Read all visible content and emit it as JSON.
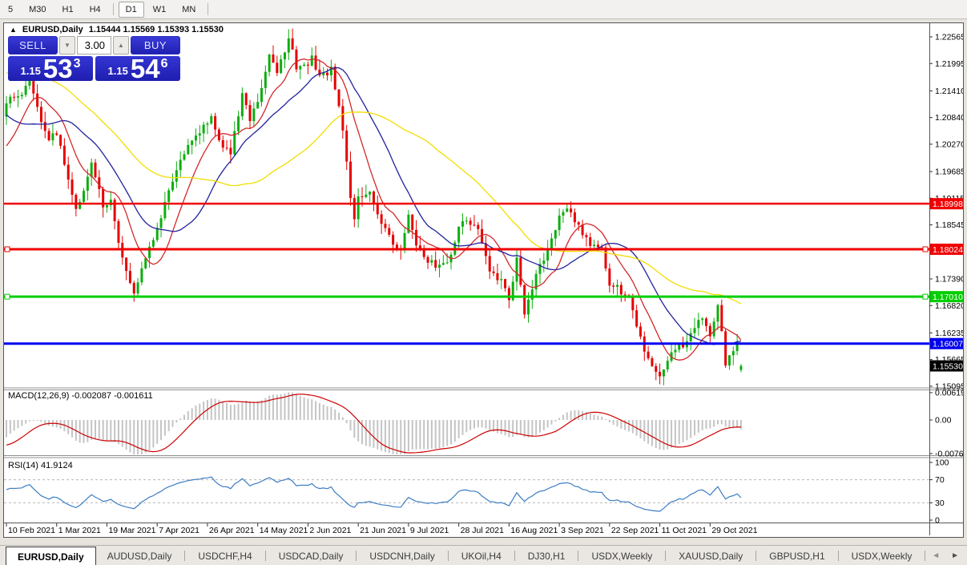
{
  "toolbar": {
    "timeframes": [
      "5",
      "M30",
      "H1",
      "H4",
      "D1",
      "W1",
      "MN"
    ],
    "selected": "D1"
  },
  "chart_header": {
    "collapse_arrow": "▲",
    "symbol": "EURUSD,Daily",
    "ohlc_text": "1.15444 1.15569 1.15393 1.15530"
  },
  "trade_panel": {
    "sell_label": "SELL",
    "buy_label": "BUY",
    "volume": "3.00",
    "spin_down": "▼",
    "spin_up": "▲",
    "sell_price_prefix": "1.15",
    "sell_price_big": "53",
    "sell_price_sup": "3",
    "buy_price_prefix": "1.15",
    "buy_price_big": "54",
    "buy_price_sup": "6"
  },
  "subwindows": {
    "macd_label": "MACD(12,26,9) -0.002087 -0.001611",
    "rsi_label": "RSI(14) 41.9124"
  },
  "tabs": {
    "items": [
      "EURUSD,Daily",
      "AUDUSD,Daily",
      "USDCHF,H4",
      "USDCAD,Daily",
      "USDCNH,Daily",
      "UKOil,H4",
      "DJ30,H1",
      "USDX,Weekly",
      "XAUUSD,Daily",
      "GBPUSD,H1",
      "USDX,Weekly"
    ],
    "active_index": 0,
    "scroll_left": "◄",
    "scroll_right": "►"
  },
  "chart_data": {
    "type": "candlestick",
    "symbol": "EURUSD",
    "timeframe": "Daily",
    "last_ohlc": {
      "open": 1.15444,
      "high": 1.15569,
      "low": 1.15393,
      "close": 1.1553
    },
    "bars_total": 191,
    "up_color": "#0EAE10",
    "down_color": "#E60000",
    "price_axis_labels": [
      [
        "1.22565",
        1.22565
      ],
      [
        "1.21995",
        1.21995
      ],
      [
        "1.21410",
        1.2141
      ],
      [
        "1.20840",
        1.2084
      ],
      [
        "1.20270",
        1.2027
      ],
      [
        "1.19685",
        1.19685
      ],
      [
        "1.19115",
        1.19115
      ],
      [
        "1.18545",
        1.18545
      ],
      [
        "1.17390",
        1.1739
      ],
      [
        "1.16820",
        1.1682
      ],
      [
        "1.16235",
        1.16235
      ],
      [
        "1.15665",
        1.15665
      ],
      [
        "1.15095",
        1.15095
      ]
    ],
    "x_axis_dates": [
      [
        "10 Feb 2021",
        0
      ],
      [
        "1 Mar 2021",
        13
      ],
      [
        "19 Mar 2021",
        26
      ],
      [
        "7 Apr 2021",
        39
      ],
      [
        "26 Apr 2021",
        52
      ],
      [
        "14 May 2021",
        65
      ],
      [
        "2 Jun 2021",
        78
      ],
      [
        "21 Jun 2021",
        91
      ],
      [
        "9 Jul 2021",
        104
      ],
      [
        "28 Jul 2021",
        117
      ],
      [
        "16 Aug 2021",
        130
      ],
      [
        "3 Sep 2021",
        143
      ],
      [
        "22 Sep 2021",
        156
      ],
      [
        "11 Oct 2021",
        169
      ],
      [
        "29 Oct 2021",
        182
      ]
    ],
    "hlines": [
      {
        "price": 1.18998,
        "label": "1.18998",
        "color": "#F00000",
        "width": 2.5,
        "selected": false
      },
      {
        "price": 1.18024,
        "label": "1.18024",
        "color": "#F00000",
        "width": 3,
        "selected": true
      },
      {
        "price": 1.1701,
        "label": "1.17010",
        "color": "#00CE00",
        "width": 3,
        "selected": true
      },
      {
        "price": 1.16007,
        "label": "1.16007",
        "color": "#0000F0",
        "width": 3,
        "selected": false
      }
    ],
    "current_price": {
      "label": "1.15530",
      "price": 1.1553,
      "bg": "#000000"
    },
    "moving_averages": [
      {
        "period": 10,
        "color": "#D22828"
      },
      {
        "period": 21,
        "color": "#22229E"
      },
      {
        "period": 50,
        "color": "#F2DE00"
      }
    ],
    "close_anchors": [
      [
        -60,
        1.192
      ],
      [
        -50,
        1.214
      ],
      [
        -40,
        1.22
      ],
      [
        -32,
        1.228
      ],
      [
        -26,
        1.234
      ],
      [
        -20,
        1.2255
      ],
      [
        -15,
        1.216
      ],
      [
        -10,
        1.203
      ],
      [
        -6,
        1.196
      ],
      [
        -3,
        1.203
      ],
      [
        0,
        1.212
      ],
      [
        3,
        1.2122
      ],
      [
        6,
        1.2168
      ],
      [
        8,
        1.21
      ],
      [
        11,
        1.204
      ],
      [
        13,
        1.2047
      ],
      [
        15,
        1.199
      ],
      [
        18,
        1.189
      ],
      [
        20,
        1.193
      ],
      [
        22,
        1.1988
      ],
      [
        25,
        1.19
      ],
      [
        27,
        1.1906
      ],
      [
        29,
        1.181
      ],
      [
        31,
        1.176
      ],
      [
        33,
        1.1705
      ],
      [
        36,
        1.178
      ],
      [
        40,
        1.1873
      ],
      [
        44,
        1.1975
      ],
      [
        48,
        1.2035
      ],
      [
        53,
        1.2089
      ],
      [
        56,
        1.202
      ],
      [
        58,
        1.2005
      ],
      [
        61,
        1.2135
      ],
      [
        63,
        1.208
      ],
      [
        66,
        1.2145
      ],
      [
        68,
        1.2225
      ],
      [
        70,
        1.218
      ],
      [
        73,
        1.2255
      ],
      [
        75,
        1.2195
      ],
      [
        77,
        1.219
      ],
      [
        79,
        1.2212
      ],
      [
        81,
        1.217
      ],
      [
        84,
        1.2185
      ],
      [
        86,
        1.211
      ],
      [
        88,
        1.1995
      ],
      [
        89,
        1.1905
      ],
      [
        90,
        1.1865
      ],
      [
        91,
        1.192
      ],
      [
        94,
        1.1925
      ],
      [
        97,
        1.1855
      ],
      [
        100,
        1.1815
      ],
      [
        102,
        1.1795
      ],
      [
        104,
        1.1876
      ],
      [
        106,
        1.1805
      ],
      [
        108,
        1.179
      ],
      [
        111,
        1.1765
      ],
      [
        114,
        1.1775
      ],
      [
        117,
        1.1845
      ],
      [
        119,
        1.187
      ],
      [
        122,
        1.1838
      ],
      [
        125,
        1.176
      ],
      [
        128,
        1.1735
      ],
      [
        130,
        1.17
      ],
      [
        132,
        1.1777
      ],
      [
        134,
        1.167
      ],
      [
        137,
        1.1745
      ],
      [
        140,
        1.18
      ],
      [
        143,
        1.1875
      ],
      [
        145,
        1.1895
      ],
      [
        148,
        1.185
      ],
      [
        151,
        1.1815
      ],
      [
        154,
        1.181
      ],
      [
        156,
        1.1725
      ],
      [
        158,
        1.172
      ],
      [
        161,
        1.17
      ],
      [
        163,
        1.164
      ],
      [
        165,
        1.159
      ],
      [
        167,
        1.155
      ],
      [
        169,
        1.1528
      ],
      [
        171,
        1.156
      ],
      [
        173,
        1.159
      ],
      [
        175,
        1.16
      ],
      [
        178,
        1.1633
      ],
      [
        180,
        1.1655
      ],
      [
        182,
        1.161
      ],
      [
        184,
        1.168
      ],
      [
        186,
        1.156
      ],
      [
        188,
        1.158
      ],
      [
        189,
        1.161
      ],
      [
        190,
        1.1553
      ]
    ],
    "macd": {
      "fast": 12,
      "slow": 26,
      "signal": 9,
      "display": "-0.002087 -0.001611",
      "hist_color": "#C4C4C4",
      "signal_color": "#CC0000",
      "axis_labels": [
        [
          "0.006193",
          0.006193
        ],
        [
          "0.00",
          0
        ],
        [
          "-0.00762",
          -0.00762
        ]
      ]
    },
    "rsi": {
      "period": 14,
      "display": "41.9124",
      "color": "#3C7DC4",
      "levels": [
        70,
        30
      ],
      "axis_labels": [
        [
          "100",
          100
        ],
        [
          "70",
          70
        ],
        [
          "30",
          30
        ],
        [
          "0",
          0
        ]
      ]
    }
  }
}
